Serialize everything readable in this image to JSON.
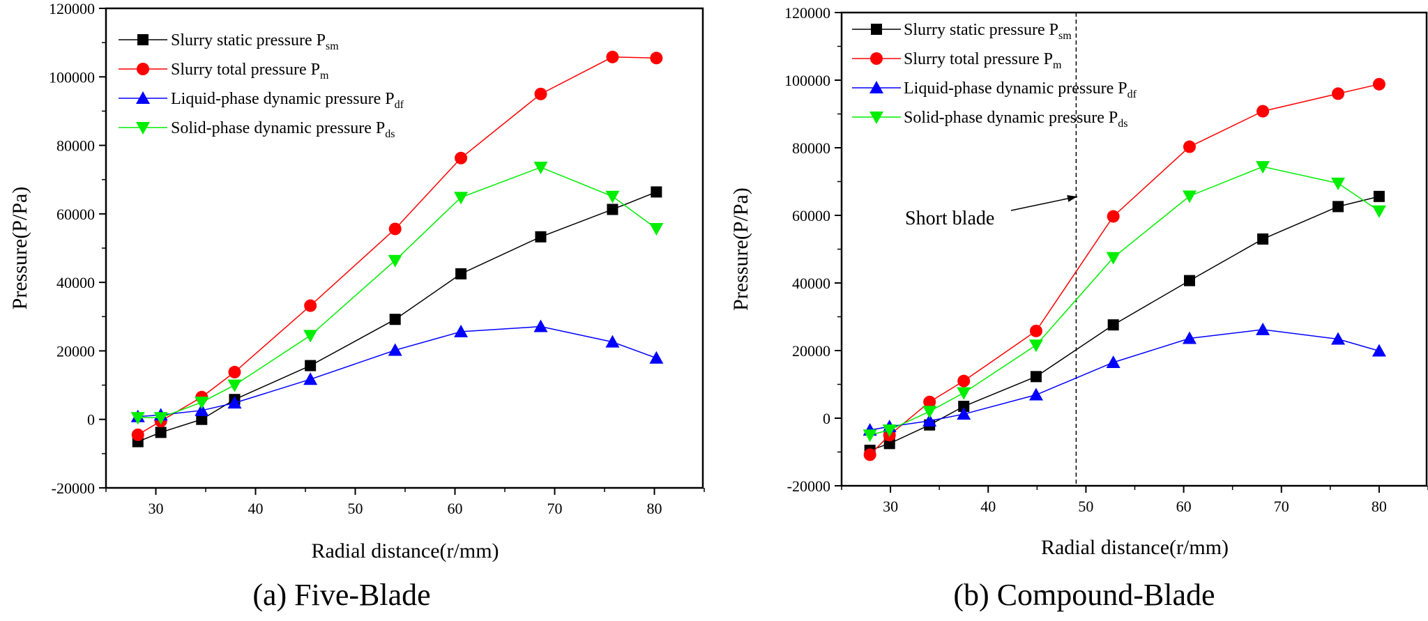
{
  "charts": [
    {
      "type": "line",
      "caption": "(a) Five-Blade",
      "xlabel": "Radial distance(r/mm)",
      "ylabel": "Pressure(P/Pa)",
      "xlim": [
        25,
        85
      ],
      "ylim": [
        -20000,
        120000
      ],
      "xticks": [
        30,
        40,
        50,
        60,
        70,
        80
      ],
      "yticks": [
        -20000,
        0,
        20000,
        40000,
        60000,
        80000,
        100000,
        120000
      ],
      "xtick_labels": [
        "30",
        "40",
        "50",
        "60",
        "70",
        "80"
      ],
      "ytick_labels": [
        "-20000",
        "0",
        "20000",
        "40000",
        "60000",
        "80000",
        "100000",
        "120000"
      ],
      "legend_position": "top-left",
      "series": [
        {
          "name": "Slurry static pressure P",
          "sub": "sm",
          "color": "#000000",
          "marker": "square",
          "x": [
            28.2,
            30.5,
            34.6,
            37.9,
            45.5,
            54.0,
            60.6,
            68.6,
            75.8,
            80.2
          ],
          "y": [
            -6500,
            -3800,
            0,
            5800,
            15700,
            29200,
            42500,
            53300,
            61300,
            66400
          ]
        },
        {
          "name": "Slurry total pressure P",
          "sub": "m",
          "color": "#ff0000",
          "marker": "circle",
          "x": [
            28.2,
            30.5,
            34.6,
            37.9,
            45.5,
            54.0,
            60.6,
            68.6,
            75.8,
            80.2
          ],
          "y": [
            -4500,
            -500,
            6500,
            13800,
            33200,
            55600,
            76300,
            95000,
            105800,
            105500
          ]
        },
        {
          "name": "Liquid-phase dynamic pressure P",
          "sub": "df",
          "color": "#0000ff",
          "marker": "triangle-up",
          "x": [
            28.2,
            30.5,
            34.6,
            37.9,
            45.5,
            54.0,
            60.6,
            68.6,
            75.8,
            80.2
          ],
          "y": [
            800,
            1300,
            2600,
            4800,
            11700,
            20200,
            25600,
            27100,
            22600,
            17900
          ]
        },
        {
          "name": "Solid-phase dynamic pressure P",
          "sub": "ds",
          "color": "#00ee00",
          "marker": "triangle-down",
          "x": [
            28.2,
            30.5,
            34.6,
            37.9,
            45.5,
            54.0,
            60.6,
            68.6,
            75.8,
            80.2
          ],
          "y": [
            500,
            500,
            5000,
            10000,
            24500,
            46400,
            64800,
            73600,
            65100,
            55700
          ]
        }
      ]
    },
    {
      "type": "line",
      "caption": "(b) Compound-Blade",
      "xlabel": "Radial distance(r/mm)",
      "ylabel": "Pressure(P/Pa)",
      "xlim": [
        25,
        85
      ],
      "ylim": [
        -20000,
        120000
      ],
      "xticks": [
        30,
        40,
        50,
        60,
        70,
        80
      ],
      "yticks": [
        -20000,
        0,
        20000,
        40000,
        60000,
        80000,
        100000,
        120000
      ],
      "xtick_labels": [
        "30",
        "40",
        "50",
        "60",
        "70",
        "80"
      ],
      "ytick_labels": [
        "-20000",
        "0",
        "20000",
        "40000",
        "60000",
        "80000",
        "100000",
        "120000"
      ],
      "legend_position": "top-left",
      "annotation": {
        "text": "Short blade",
        "vline_x": 49
      },
      "series": [
        {
          "name": "Slurry static pressure P",
          "sub": "sm",
          "color": "#000000",
          "marker": "square",
          "x": [
            27.9,
            29.9,
            34.0,
            37.5,
            44.9,
            52.8,
            60.6,
            68.1,
            75.8,
            80.0
          ],
          "y": [
            -9500,
            -7500,
            -2000,
            3500,
            12300,
            27600,
            40700,
            53000,
            62600,
            65600
          ]
        },
        {
          "name": "Slurry total pressure P",
          "sub": "m",
          "color": "#ff0000",
          "marker": "circle",
          "x": [
            27.9,
            29.9,
            34.0,
            37.5,
            44.9,
            52.8,
            60.6,
            68.1,
            75.8,
            80.0
          ],
          "y": [
            -10800,
            -5000,
            4800,
            11000,
            25800,
            59700,
            80300,
            90800,
            96000,
            98800
          ]
        },
        {
          "name": "Liquid-phase dynamic pressure P",
          "sub": "df",
          "color": "#0000ff",
          "marker": "triangle-up",
          "x": [
            27.9,
            29.9,
            34.0,
            37.5,
            44.9,
            52.8,
            60.6,
            68.1,
            75.8,
            80.0
          ],
          "y": [
            -3500,
            -2500,
            -800,
            1200,
            6900,
            16500,
            23600,
            26200,
            23400,
            19900
          ]
        },
        {
          "name": "Solid-phase dynamic pressure P",
          "sub": "ds",
          "color": "#00ee00",
          "marker": "triangle-down",
          "x": [
            27.9,
            29.9,
            34.0,
            37.5,
            44.9,
            52.8,
            60.6,
            68.1,
            75.8,
            80.0
          ],
          "y": [
            -5000,
            -3500,
            2000,
            7500,
            21600,
            47500,
            65700,
            74400,
            69500,
            61300
          ]
        }
      ]
    }
  ]
}
